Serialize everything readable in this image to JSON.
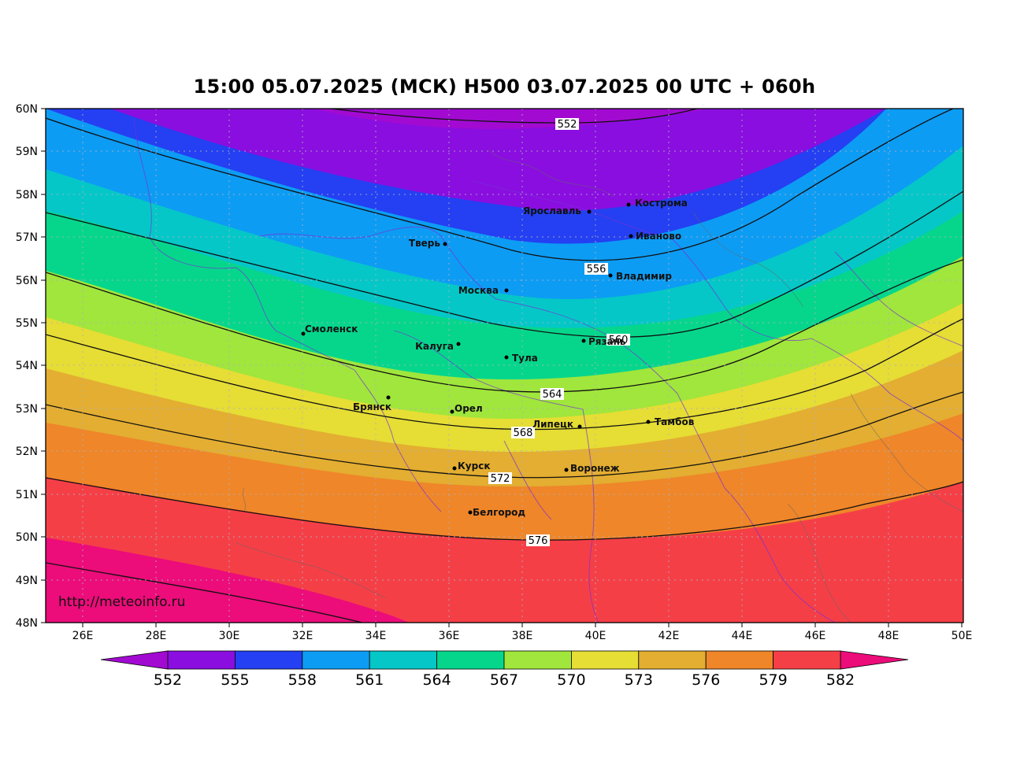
{
  "title": "15:00 05.07.2025 (МСК) H500  03.07.2025 00 UTC + 060h",
  "watermark": "http://meteoinfo.ru",
  "lat_labels": [
    "60N",
    "59N",
    "58N",
    "57N",
    "56N",
    "55N",
    "54N",
    "53N",
    "52N",
    "51N",
    "50N",
    "49N",
    "48N"
  ],
  "lon_labels": [
    "26E",
    "28E",
    "30E",
    "32E",
    "34E",
    "36E",
    "38E",
    "40E",
    "42E",
    "44E",
    "46E",
    "48E",
    "50E"
  ],
  "colorbar": {
    "labels": [
      "552",
      "555",
      "558",
      "561",
      "564",
      "567",
      "570",
      "573",
      "576",
      "579",
      "582"
    ],
    "colors": [
      "#8a0ee0",
      "#2440f2",
      "#0d9cf4",
      "#05c7c7",
      "#06d68c",
      "#a0e63c",
      "#e6dd35",
      "#e3ae31",
      "#ef8629",
      "#f53f47"
    ],
    "under_color": "#a20ad2",
    "over_color": "#ec0c7a"
  },
  "isoline_labels": [
    "552",
    "556",
    "560",
    "564",
    "568",
    "572",
    "576"
  ],
  "cities": [
    {
      "name": "Кострома"
    },
    {
      "name": "Ярославль"
    },
    {
      "name": "Иваново"
    },
    {
      "name": "Тверь"
    },
    {
      "name": "Владимир"
    },
    {
      "name": "Москва"
    },
    {
      "name": "Смоленск"
    },
    {
      "name": "Калуга"
    },
    {
      "name": "Рязань"
    },
    {
      "name": "Тула"
    },
    {
      "name": "Брянск"
    },
    {
      "name": "Орел"
    },
    {
      "name": "Липецк"
    },
    {
      "name": "Тамбов"
    },
    {
      "name": "Курск"
    },
    {
      "name": "Воронеж"
    },
    {
      "name": "Белгород"
    }
  ]
}
